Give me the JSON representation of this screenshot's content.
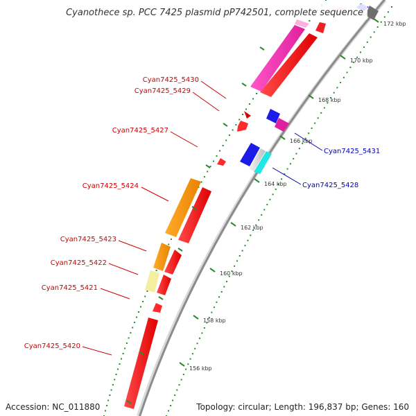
{
  "title": "Cyanothece sp. PCC 7425 plasmid pP742501, complete sequence",
  "footer": {
    "accession": "Accession: NC_011880",
    "topology": "Topology: circular; Length: 196,837 bp; Genes: 160"
  },
  "colors": {
    "backbone": "#8c8c8c",
    "tick": "#2a8a2a",
    "dots": "#1f8f1f",
    "forward_label": "#cc0000",
    "reverse_label": "#0000aa"
  },
  "scale": {
    "unit": "kbp",
    "labels": [
      "156 kbp",
      "158 kbp",
      "160 kbp",
      "162 kbp",
      "164 kbp",
      "166 kbp",
      "168 kbp",
      "170 kbp",
      "172 kbp"
    ]
  },
  "gene_labels": [
    {
      "name": "Cyan7425_5430",
      "strand": "forward"
    },
    {
      "name": "Cyan7425_5429",
      "strand": "forward"
    },
    {
      "name": "Cyan7425_5427",
      "strand": "forward"
    },
    {
      "name": "Cyan7425_5424",
      "strand": "forward"
    },
    {
      "name": "Cyan7425_5423",
      "strand": "forward"
    },
    {
      "name": "Cyan7425_5422",
      "strand": "forward"
    },
    {
      "name": "Cyan7425_5421",
      "strand": "forward"
    },
    {
      "name": "Cyan7425_5420",
      "strand": "forward"
    },
    {
      "name": "Cyan7425_5431",
      "strand": "reverse"
    },
    {
      "name": "Cyan7425_5428",
      "strand": "reverse"
    }
  ]
}
